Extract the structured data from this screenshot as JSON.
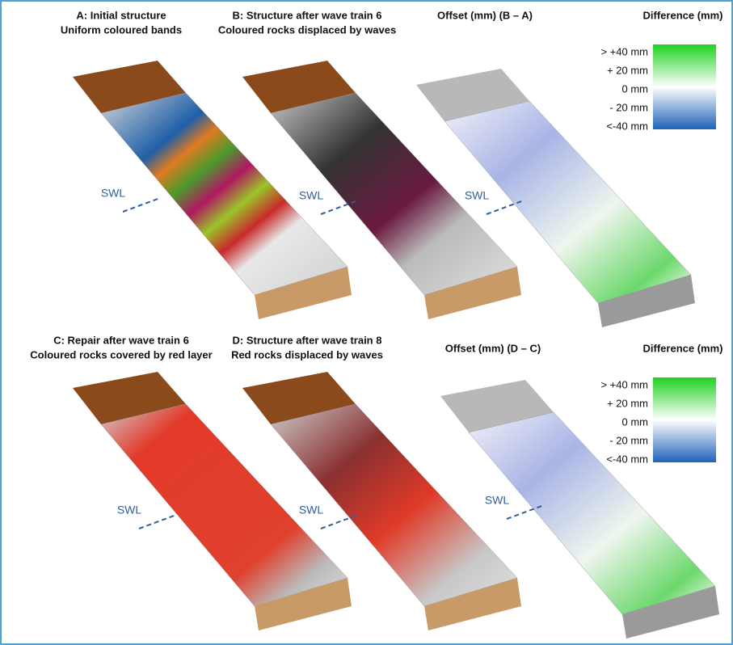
{
  "panels": [
    {
      "title": [
        "A: Initial structure",
        "Uniform coloured bands"
      ],
      "marker": "SWL"
    },
    {
      "title": [
        "B: Structure after wave train 6",
        "Coloured rocks displaced by waves"
      ],
      "marker": "SWL"
    },
    {
      "title": [
        "Offset (mm)  (B – A)"
      ],
      "marker": "SWL",
      "legend": {
        "title": "Difference (mm)",
        "labels": [
          "> +40 mm",
          "+ 20 mm",
          "0 mm",
          "- 20 mm",
          "<-40 mm"
        ]
      }
    },
    {
      "title": [
        "C: Repair after wave train 6",
        "Coloured rocks covered by red layer"
      ],
      "marker": "SWL"
    },
    {
      "title": [
        "D: Structure after wave train 8",
        "Red rocks displaced by waves"
      ],
      "marker": "SWL"
    },
    {
      "title": [
        "Offset (mm)  (D – C)"
      ],
      "marker": "SWL",
      "legend": {
        "title": "Difference (mm)",
        "labels": [
          "> +40 mm",
          "+ 20 mm",
          "0 mm",
          "- 20 mm",
          "<-40 mm"
        ]
      }
    }
  ]
}
